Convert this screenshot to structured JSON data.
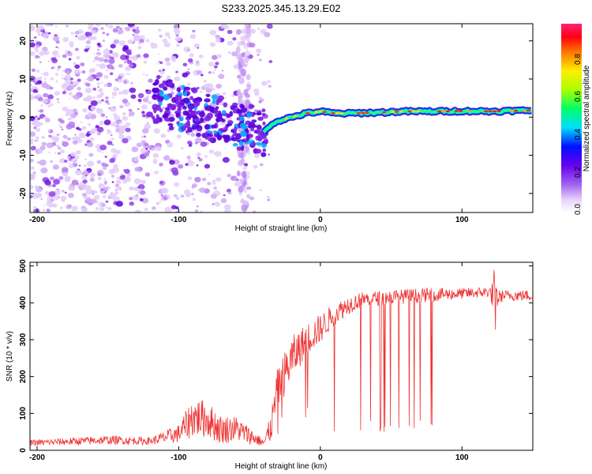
{
  "title": "S233.2025.345.13.29.E02",
  "chart_data": [
    {
      "type": "heatmap",
      "name": "spectrogram",
      "xlabel": "Height of straight line (km)",
      "ylabel": "Frequency (Hz)",
      "xlim": [
        -205,
        150
      ],
      "ylim": [
        -25,
        24.5
      ],
      "xticks": [
        "-200",
        "-100",
        "0",
        "100"
      ],
      "yticks": [
        "-20",
        "-10",
        "0",
        "10",
        "20"
      ],
      "xtick_values": [
        -200,
        -100,
        0,
        100
      ],
      "ytick_values": [
        -20,
        -10,
        0,
        10,
        20
      ],
      "ridge": {
        "description": "dominant frequency ridge",
        "x": [
          -40,
          -35,
          -30,
          -20,
          -10,
          0,
          10,
          20,
          40,
          60,
          80,
          100,
          120,
          150
        ],
        "y": [
          -4,
          -2,
          -1,
          0,
          1,
          1.5,
          1,
          1,
          1.2,
          1.5,
          1.5,
          1.6,
          1.5,
          1.8
        ]
      },
      "noise_region": {
        "x_start": -205,
        "x_end": -40
      }
    },
    {
      "type": "line",
      "name": "snr",
      "xlabel": "Height of straight line (km)",
      "ylabel": "SNR (10 * v/v)",
      "xlim": [
        -205,
        150
      ],
      "ylim": [
        0,
        510
      ],
      "xticks": [
        "-200",
        "-100",
        "0",
        "100"
      ],
      "yticks": [
        "0",
        "100",
        "200",
        "300",
        "400",
        "500"
      ],
      "xtick_values": [
        -200,
        -100,
        0,
        100
      ],
      "ytick_values": [
        0,
        100,
        200,
        300,
        400,
        500
      ],
      "color": "#ee3333",
      "envelope": {
        "x": [
          -205,
          -150,
          -120,
          -100,
          -90,
          -80,
          -70,
          -60,
          -50,
          -40,
          -35,
          -30,
          -25,
          -20,
          -10,
          0,
          10,
          20,
          30,
          50,
          70,
          100,
          120,
          123,
          126,
          130,
          150
        ],
        "y_mean": [
          20,
          28,
          25,
          45,
          90,
          85,
          55,
          60,
          40,
          20,
          60,
          170,
          210,
          250,
          300,
          330,
          370,
          395,
          410,
          415,
          420,
          425,
          430,
          410,
          415,
          420,
          420
        ],
        "y_spread": [
          8,
          12,
          10,
          25,
          55,
          50,
          40,
          35,
          25,
          10,
          40,
          60,
          60,
          60,
          45,
          40,
          30,
          25,
          20,
          20,
          20,
          15,
          15,
          60,
          20,
          15,
          15
        ]
      },
      "dropouts": {
        "x_start": 20,
        "x_end": 80,
        "min_value": 50
      }
    }
  ]
}
